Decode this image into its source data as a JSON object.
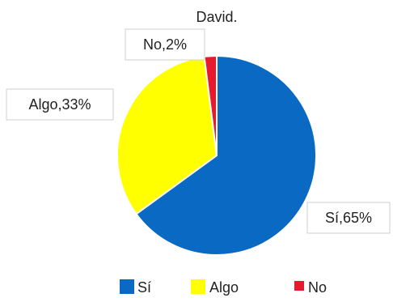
{
  "chart_data": {
    "type": "pie",
    "title": "David.",
    "categories": [
      "Sí",
      "Algo",
      "No"
    ],
    "values": [
      65,
      33,
      2
    ],
    "data_labels": [
      "Sí,65%",
      "Algo,33%",
      "No,2%"
    ],
    "colors": [
      "#0a69c2",
      "#ffff00",
      "#e8192c"
    ],
    "legend": {
      "position": "bottom",
      "entries": [
        "Sí",
        "Algo",
        "No"
      ]
    }
  }
}
